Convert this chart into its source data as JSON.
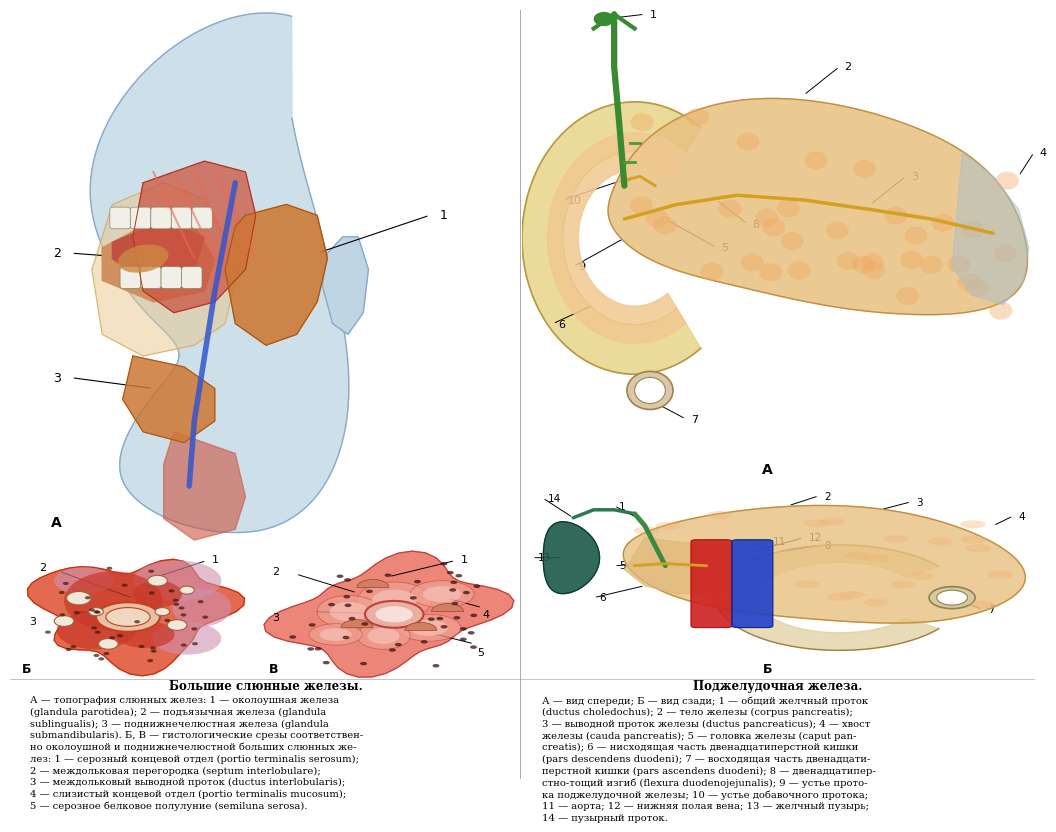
{
  "background_color": "#f5f2ee",
  "title_left": "Большие слюнные железы.",
  "title_right": "Поджелудочная железа.",
  "text_left": "А — топография слюнных желез: 1 — околоушная железа\n(glandula parotidea); 2 — подъязычная железа (glandula\nsublingualis); 3 — поднижнечелюстная железа (glandula\nsubmandibularis). Б, В — гистологические срезы соответствен-\nно околоушной и поднижнечелюстной больших слюнных же-\nлез: 1 — серозный концевой отдел (portio terminalis serosum);\n2 — междольковая перегородка (septum interlobulare);\n3 — междольковый выводной проток (ductus interlobularis);\n4 — слизистый концевой отдел (portio terminalis mucosum);\n5 — серозное белковое полулуние (semiluna serosa).",
  "text_right": "А — вид спереди; Б — вид сзади; 1 — общий желчный проток\n(ductus choledochus); 2 — тело железы (corpus pancreatis);\n3 — выводной проток железы (ductus pancreaticus); 4 — хвост\nжелезы (cauda pancreatis); 5 — головка железы (caput pan-\ncreatis); 6 — нисходящая часть двенадцатиперстной кишки\n(pars descendens duodeni); 7 — восходящая часть двенадцати-\nперстной кишки (pars ascendens duodeni); 8 — двенадцатипер-\nстно-тощий изгиб (flexura duodenojejunalis); 9 — устье прото-\nка поджелудочной железы; 10 — устье добавочного протока;\n11 — аорта; 12 — нижняя полая вена; 13 — желчный пузырь;\n14 — пузырный проток.",
  "text_fontsize": 7.2,
  "title_fontsize": 8.5,
  "img_bg": "#ffffff"
}
